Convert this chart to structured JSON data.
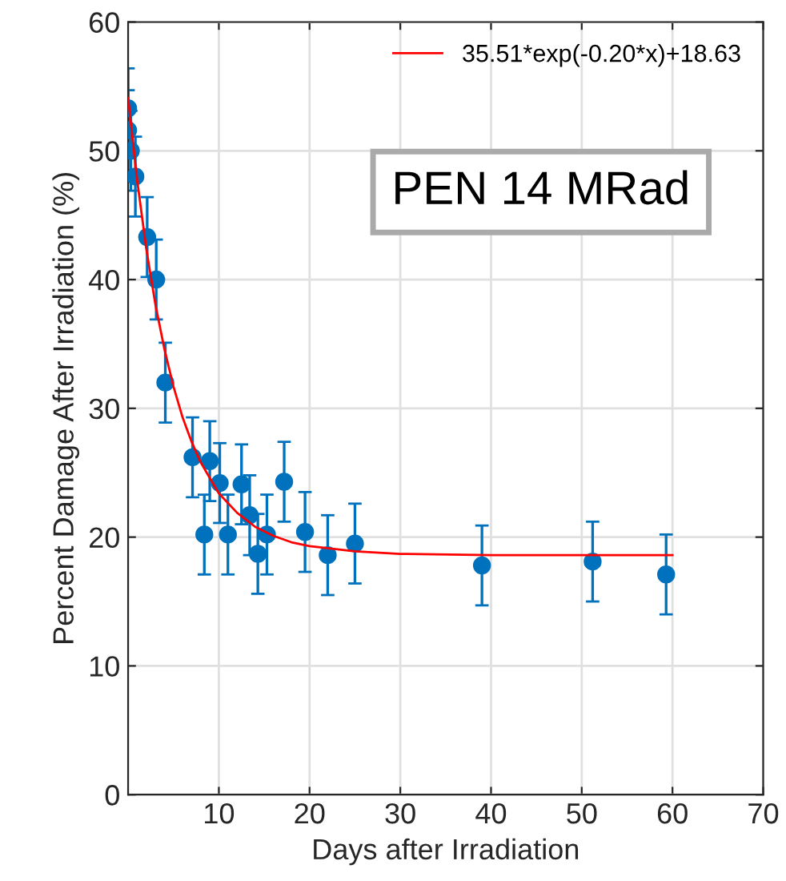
{
  "chart_data": {
    "type": "scatter",
    "xlabel": "Days after Irradiation",
    "ylabel": "Percent Damage After Irradiation (%)",
    "annotations": [
      "PEN 14 MRad"
    ],
    "xlim": [
      0,
      70
    ],
    "ylim": [
      0,
      60
    ],
    "xticks": [
      10,
      20,
      30,
      40,
      50,
      60,
      70
    ],
    "yticks": [
      0,
      10,
      20,
      30,
      40,
      50,
      60
    ],
    "grid": true,
    "legend": "top right",
    "series": [
      {
        "marker": "circle",
        "color": "#0072bd",
        "x": [
          0,
          0,
          0.3,
          0.8,
          2.1,
          3.1,
          4.1,
          7.1,
          8.4,
          9.0,
          10.1,
          11.0,
          12.5,
          13.4,
          14.3,
          15.3,
          17.2,
          19.5,
          22.0,
          25.0,
          39.0,
          51.2,
          59.3
        ],
        "values": [
          53.3,
          51.6,
          50.0,
          48.0,
          43.3,
          40.0,
          32.0,
          26.2,
          20.2,
          25.9,
          24.2,
          20.2,
          24.1,
          21.7,
          18.7,
          20.2,
          24.3,
          20.4,
          18.6,
          19.5,
          17.8,
          18.1,
          17.1
        ],
        "errors": [
          3.1,
          3.1,
          3.1,
          3.1,
          3.1,
          3.1,
          3.1,
          3.1,
          3.1,
          3.1,
          3.1,
          3.1,
          3.1,
          3.1,
          3.1,
          3.1,
          3.1,
          3.1,
          3.1,
          3.1,
          3.1,
          3.1,
          3.1
        ]
      },
      {
        "type": "line",
        "name": "35.51*exp(-0.20*x)+18.63",
        "color": "#ff0000",
        "marker": "none",
        "line_style": "solid",
        "x": [
          0,
          1,
          2,
          3,
          4,
          5,
          6,
          7,
          8,
          10,
          12,
          14,
          16,
          18,
          20,
          25,
          30,
          40,
          60
        ],
        "values": [
          54.1,
          47.7,
          42.4,
          38.1,
          34.6,
          31.7,
          29.3,
          27.4,
          25.8,
          23.4,
          21.9,
          20.8,
          20.1,
          19.6,
          19.3,
          18.9,
          18.7,
          18.6,
          18.6
        ]
      }
    ]
  }
}
